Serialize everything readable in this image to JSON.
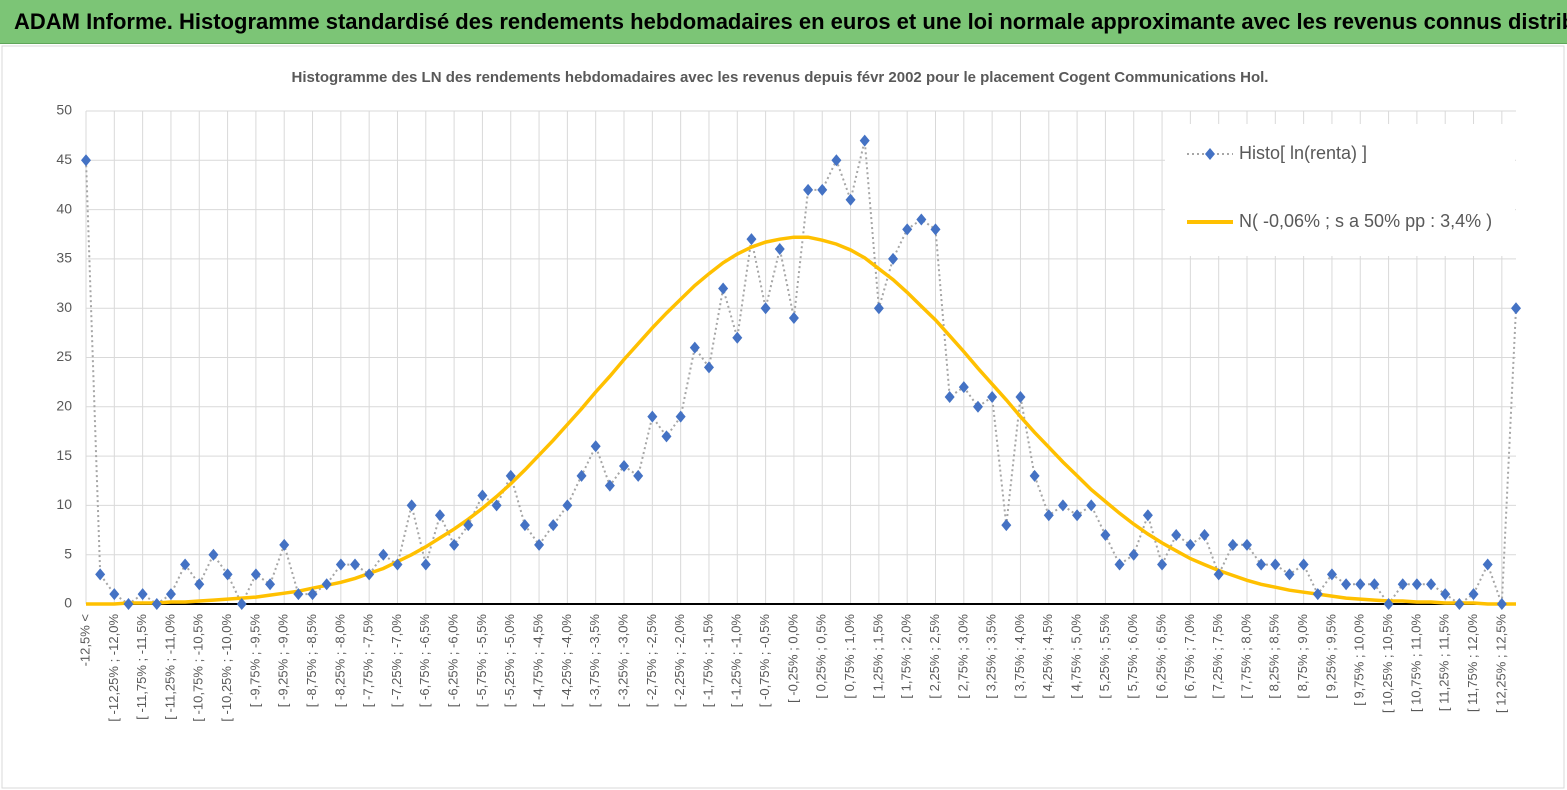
{
  "header": {
    "title": "ADAM Informe. Histogramme standardisé des rendements hebdomadaires en euros et une loi normale approximante avec les revenus connus distribués"
  },
  "chart_data": {
    "type": "line",
    "title": "Histogramme des LN des rendements hebdomadaires avec les revenus depuis févr 2002 pour le placement Cogent Communications Hol.",
    "categories": [
      "-12,5% <",
      null,
      "[ -12,25% ; -12,0%",
      null,
      "[ -11,75% ; -11,5%",
      null,
      "[ -11,25% ; -11,0%",
      null,
      "[ -10,75% ; -10,5%",
      null,
      "[ -10,25% ; -10,0%",
      null,
      "[ -9,75% ; -9,5%",
      null,
      "[ -9,25% ; -9,0%",
      null,
      "[ -8,75% ; -8,5%",
      null,
      "[ -8,25% ; -8,0%",
      null,
      "[ -7,75% ; -7,5%",
      null,
      "[ -7,25% ; -7,0%",
      null,
      "[ -6,75% ; -6,5%",
      null,
      "[ -6,25% ; -6,0%",
      null,
      "[ -5,75% ; -5,5%",
      null,
      "[ -5,25% ; -5,0%",
      null,
      "[ -4,75% ; -4,5%",
      null,
      "[ -4,25% ; -4,0%",
      null,
      "[ -3,75% ; -3,5%",
      null,
      "[ -3,25% ; -3,0%",
      null,
      "[ -2,75% ; -2,5%",
      null,
      "[ -2,25% ; -2,0%",
      null,
      "[ -1,75% ; -1,5%",
      null,
      "[ -1,25% ; -1,0%",
      null,
      "[ -0,75% ; -0,5%",
      null,
      "[ -0,25% ; 0,0%",
      null,
      "[ 0,25% ; 0,5%",
      null,
      "[ 0,75% ; 1,0%",
      null,
      "[ 1,25% ; 1,5%",
      null,
      "[ 1,75% ; 2,0%",
      null,
      "[ 2,25% ; 2,5%",
      null,
      "[ 2,75% ; 3,0%",
      null,
      "[ 3,25% ; 3,5%",
      null,
      "[ 3,75% ; 4,0%",
      null,
      "[ 4,25% ; 4,5%",
      null,
      "[ 4,75% ; 5,0%",
      null,
      "[ 5,25% ; 5,5%",
      null,
      "[ 5,75% ; 6,0%",
      null,
      "[ 6,25% ; 6,5%",
      null,
      "[ 6,75% ; 7,0%",
      null,
      "[ 7,25% ; 7,5%",
      null,
      "[ 7,75% ; 8,0%",
      null,
      "[ 8,25% ; 8,5%",
      null,
      "[ 8,75% ; 9,0%",
      null,
      "[ 9,25% ; 9,5%",
      null,
      "[ 9,75% ; 10,0%",
      null,
      "[ 10,25% ; 10,5%",
      null,
      "[ 10,75% ; 11,0%",
      null,
      "[ 11,25% ; 11,5%",
      null,
      "[ 11,75% ; 12,0%",
      null,
      "[ 12,25% ; 12,5%",
      null
    ],
    "series": [
      {
        "name": "Histo[ ln(renta) ]",
        "color": "#4472c4",
        "line_color": "#a6a6a6",
        "values": [
          45,
          3,
          1,
          0,
          1,
          0,
          1,
          4,
          2,
          5,
          3,
          0,
          3,
          2,
          6,
          1,
          1,
          2,
          4,
          4,
          3,
          5,
          4,
          10,
          4,
          9,
          6,
          8,
          11,
          10,
          13,
          8,
          6,
          8,
          10,
          13,
          16,
          12,
          14,
          13,
          19,
          17,
          19,
          26,
          24,
          32,
          27,
          37,
          30,
          36,
          29,
          42,
          42,
          45,
          41,
          47,
          30,
          35,
          38,
          39,
          38,
          21,
          22,
          20,
          21,
          8,
          21,
          13,
          9,
          10,
          9,
          10,
          7,
          4,
          5,
          9,
          4,
          7,
          6,
          7,
          3,
          6,
          6,
          4,
          4,
          3,
          4,
          1,
          3,
          2,
          2,
          2,
          0,
          2,
          2,
          2,
          1,
          0,
          1,
          4,
          0,
          30
        ]
      },
      {
        "name": "N( -0,06% ; s a 50% pp : 3,4% )",
        "color": "#ffc000",
        "values": [
          0.0,
          0.0,
          0.0,
          0.1,
          0.1,
          0.1,
          0.2,
          0.2,
          0.3,
          0.4,
          0.5,
          0.6,
          0.7,
          0.9,
          1.1,
          1.3,
          1.6,
          1.9,
          2.2,
          2.6,
          3.1,
          3.6,
          4.3,
          5.0,
          5.8,
          6.7,
          7.6,
          8.6,
          9.7,
          10.9,
          12.2,
          13.6,
          15.1,
          16.6,
          18.2,
          19.8,
          21.5,
          23.1,
          24.8,
          26.4,
          28.0,
          29.5,
          30.9,
          32.3,
          33.5,
          34.6,
          35.5,
          36.2,
          36.7,
          37.0,
          37.2,
          37.2,
          36.9,
          36.5,
          35.9,
          35.1,
          34.0,
          32.9,
          31.6,
          30.2,
          28.8,
          27.2,
          25.6,
          23.9,
          22.3,
          20.7,
          19.0,
          17.4,
          15.9,
          14.4,
          13.0,
          11.6,
          10.4,
          9.2,
          8.1,
          7.1,
          6.2,
          5.4,
          4.6,
          4.0,
          3.4,
          2.9,
          2.4,
          2.0,
          1.7,
          1.4,
          1.2,
          1.0,
          0.8,
          0.6,
          0.5,
          0.4,
          0.3,
          0.3,
          0.2,
          0.2,
          0.1,
          0.1,
          0.1,
          0.0,
          0.0,
          0.0
        ]
      }
    ],
    "ylim": [
      0,
      50
    ],
    "yticks": [
      0,
      5,
      10,
      15,
      20,
      25,
      30,
      35,
      40,
      45,
      50
    ],
    "grid": true,
    "legend": "top-right"
  }
}
